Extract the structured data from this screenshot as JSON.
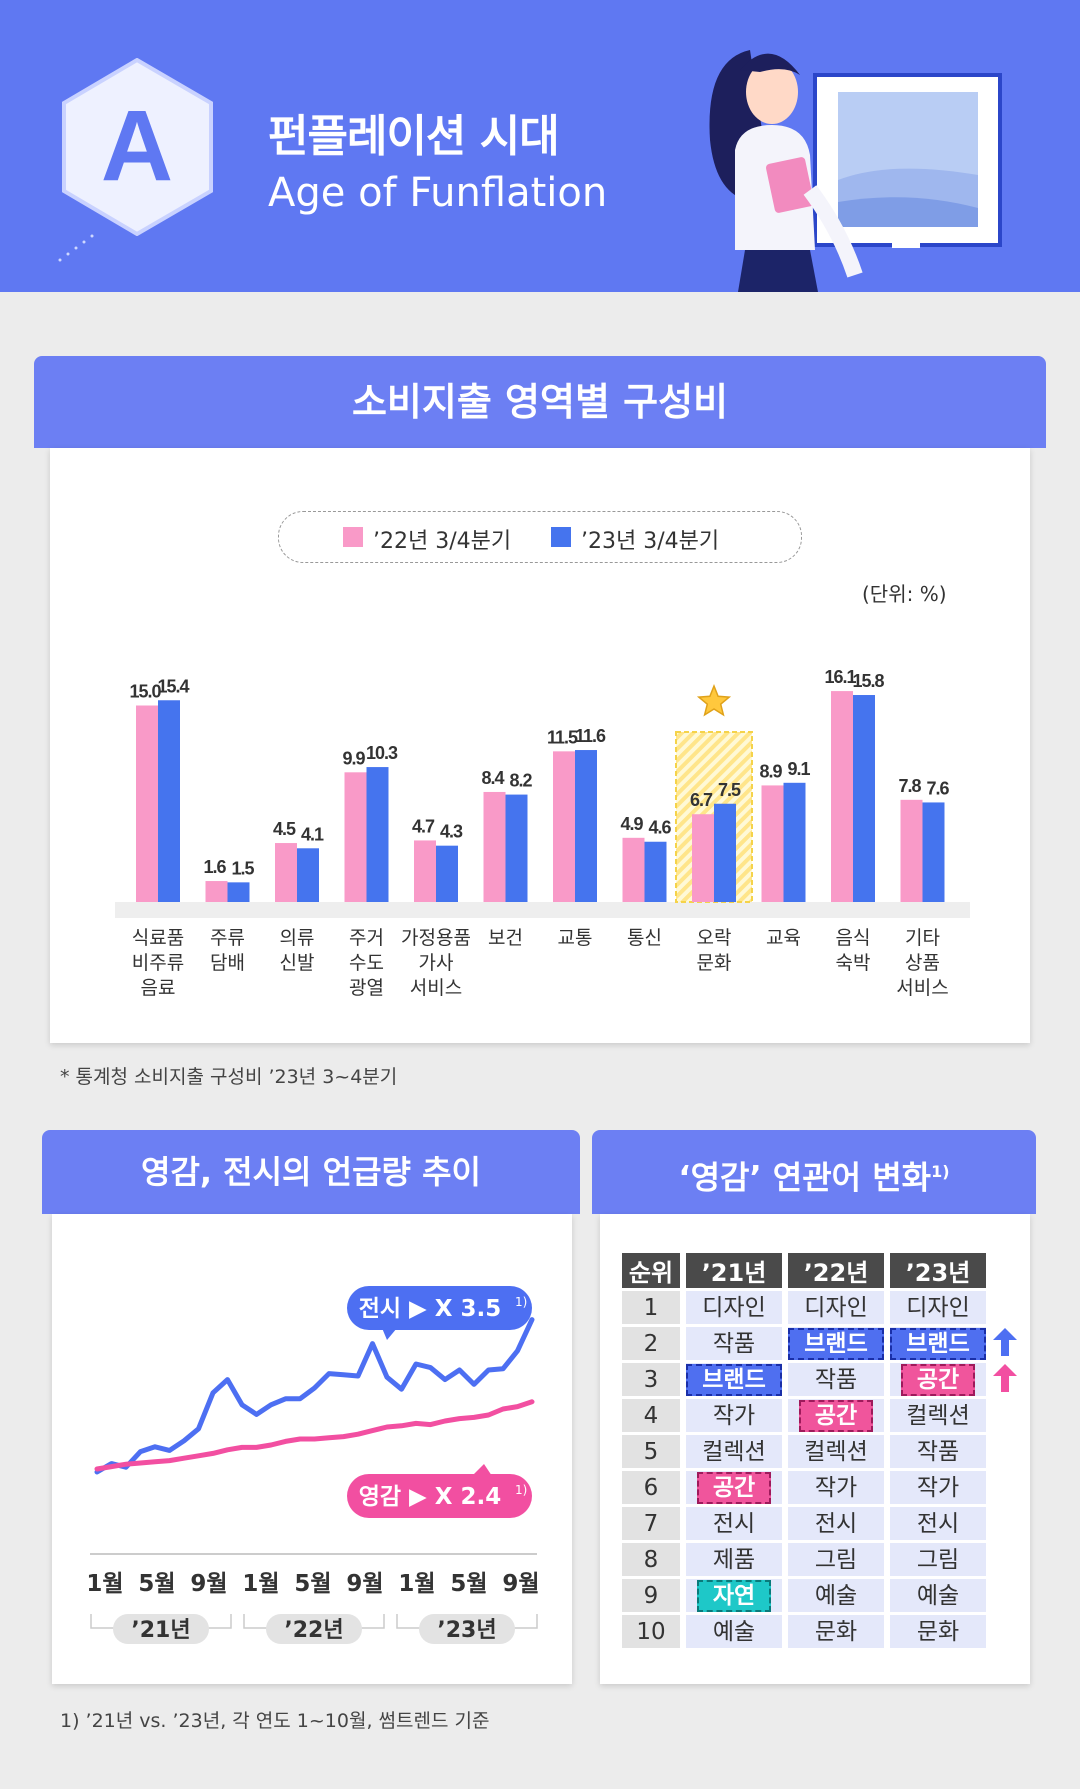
{
  "header": {
    "badge_letter": "A",
    "title_ko": "펀플레이션 시대",
    "title_en": "Age of Funflation"
  },
  "colors": {
    "header_bg": "#5f78f2",
    "panel_head": "#6c7ff3",
    "pink": "#f99ac8",
    "blue": "#4574ee",
    "line_blue": "#4d6ff2",
    "line_pink": "#f24fa1"
  },
  "spending": {
    "title": "소비지출 영역별 구성비",
    "unit": "(단위: %)",
    "footnote": "* 통계청 소비지출 구성비 ’23년 3~4분기"
  },
  "chart_data": [
    {
      "type": "bar",
      "title": "소비지출 영역별 구성비",
      "unit": "(단위: %)",
      "categories": [
        [
          "식료품",
          "비주류",
          "음료"
        ],
        [
          "주류",
          "담배"
        ],
        [
          "의류",
          "신발"
        ],
        [
          "주거",
          "수도",
          "광열"
        ],
        [
          "가정용품",
          "가사",
          "서비스"
        ],
        [
          "보건"
        ],
        [
          "교통"
        ],
        [
          "통신"
        ],
        [
          "오락",
          "문화"
        ],
        [
          "교육"
        ],
        [
          "음식",
          "숙박"
        ],
        [
          "기타",
          "상품",
          "서비스"
        ]
      ],
      "series": [
        {
          "name": "’22년 3/4분기",
          "color": "#f99ac8",
          "values": [
            15.0,
            1.6,
            4.5,
            9.9,
            4.7,
            8.4,
            11.5,
            4.9,
            6.7,
            8.9,
            16.1,
            7.8
          ]
        },
        {
          "name": "’23년 3/4분기",
          "color": "#4574ee",
          "values": [
            15.4,
            1.5,
            4.1,
            10.3,
            4.3,
            8.2,
            11.6,
            4.6,
            7.5,
            9.1,
            15.8,
            7.6
          ]
        }
      ],
      "value_labels": [
        [
          "15.0",
          "1.6",
          "4.5",
          "9.9",
          "4.7",
          "8.4",
          "11.5",
          "4.9",
          "6.7",
          "8.9",
          "16.1",
          "7.8"
        ],
        [
          "15.4",
          "1.5",
          "4.1",
          "10.3",
          "4.3",
          "8.2",
          "11.6",
          "4.6",
          "7.5",
          "9.1",
          "15.8",
          "7.6"
        ]
      ],
      "highlight_category": "오락 문화",
      "ylim": [
        0,
        17
      ]
    },
    {
      "type": "line",
      "title": "영감, 전시의 언급량 추이",
      "x_tick_labels": [
        "1월",
        "5월",
        "9월",
        "1월",
        "5월",
        "9월",
        "1월",
        "5월",
        "9월"
      ],
      "year_labels": [
        "’21년",
        "’22년",
        "’23년"
      ],
      "series": [
        {
          "name": "전시",
          "callout": "전시 ▶ X 3.5",
          "callout_sup": "1)",
          "color": "#4d6ff2",
          "values": [
            10,
            17,
            14,
            27,
            31,
            28,
            36,
            46,
            76,
            87,
            66,
            58,
            66,
            71,
            71,
            80,
            92,
            91,
            90,
            117,
            89,
            79,
            100,
            97,
            87,
            95,
            83,
            95,
            96,
            111,
            137
          ]
        },
        {
          "name": "영감",
          "callout": "영감 ▶ X 2.4",
          "callout_sup": "1)",
          "color": "#f24fa1",
          "values": [
            0,
            2,
            4,
            5,
            6,
            7,
            9,
            11,
            13,
            16,
            18,
            18,
            20,
            23,
            25,
            25,
            26,
            27,
            29,
            32,
            35,
            36,
            38,
            37,
            40,
            42,
            43,
            45,
            50,
            52,
            56
          ]
        }
      ]
    }
  ],
  "trend": {
    "title": "영감, 전시의 언급량 추이",
    "callout_exhibit": "전시 ▶ X 3.5",
    "callout_inspire": "영감 ▶ X 2.4",
    "callout_sup": "1)"
  },
  "keywords": {
    "title": "‘영감’ 연관어 변화",
    "title_sup": "1)",
    "headers": [
      "순위",
      "’21년",
      "’22년",
      "’23년"
    ],
    "rows": [
      {
        "rank": "1",
        "y21": "디자인",
        "y22": "디자인",
        "y23": "디자인"
      },
      {
        "rank": "2",
        "y21": "작품",
        "y22": "브랜드",
        "y23": "브랜드"
      },
      {
        "rank": "3",
        "y21": "브랜드",
        "y22": "작품",
        "y23": "공간"
      },
      {
        "rank": "4",
        "y21": "작가",
        "y22": "공간",
        "y23": "컬렉션"
      },
      {
        "rank": "5",
        "y21": "컬렉션",
        "y22": "컬렉션",
        "y23": "작품"
      },
      {
        "rank": "6",
        "y21": "공간",
        "y22": "작가",
        "y23": "작가"
      },
      {
        "rank": "7",
        "y21": "전시",
        "y22": "전시",
        "y23": "전시"
      },
      {
        "rank": "8",
        "y21": "제품",
        "y22": "그림",
        "y23": "그림"
      },
      {
        "rank": "9",
        "y21": "자연",
        "y22": "예술",
        "y23": "예술"
      },
      {
        "rank": "10",
        "y21": "예술",
        "y22": "문화",
        "y23": "문화"
      }
    ],
    "highlights": [
      {
        "row": 1,
        "col": "y22",
        "color": "blue"
      },
      {
        "row": 1,
        "col": "y23",
        "color": "blue"
      },
      {
        "row": 2,
        "col": "y21",
        "color": "blue"
      },
      {
        "row": 2,
        "col": "y23",
        "color": "pink"
      },
      {
        "row": 3,
        "col": "y22",
        "color": "pink"
      },
      {
        "row": 5,
        "col": "y21",
        "color": "pink"
      },
      {
        "row": 8,
        "col": "y21",
        "color": "teal"
      }
    ],
    "trend_arrows": [
      {
        "row": 1,
        "color": "blue",
        "icon": "up-arrow-icon"
      },
      {
        "row": 2,
        "color": "pink",
        "icon": "up-arrow-icon"
      }
    ]
  },
  "bottom_footnote": "1) ’21년 vs. ’23년, 각 연도 1~10월, 썸트렌드 기준"
}
